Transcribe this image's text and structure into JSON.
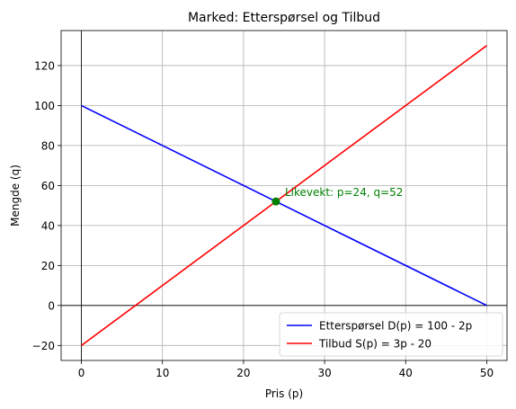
{
  "chart_data": {
    "type": "line",
    "title": "Marked: Etterspørsel og Tilbud",
    "xlabel": "Pris (p)",
    "ylabel": "Mengde (q)",
    "xlim": [
      -2.5,
      52.5
    ],
    "ylim": [
      -27.5,
      137.5
    ],
    "xticks": [
      0,
      10,
      20,
      30,
      40,
      50
    ],
    "yticks": [
      -20,
      0,
      20,
      40,
      60,
      80,
      100,
      120
    ],
    "xtick_labels": [
      "0",
      "10",
      "20",
      "30",
      "40",
      "50"
    ],
    "ytick_labels": [
      "−20",
      "0",
      "20",
      "40",
      "60",
      "80",
      "100",
      "120"
    ],
    "grid": true,
    "legend_position": "bottom-right",
    "series": [
      {
        "name": "Etterspørsel D(p) = 100 - 2p",
        "color": "#0000ff",
        "x": [
          0,
          50
        ],
        "y": [
          100,
          0
        ]
      },
      {
        "name": "Tilbud S(p) = 3p - 20",
        "color": "#ff0000",
        "x": [
          0,
          50
        ],
        "y": [
          -20,
          130
        ]
      }
    ],
    "equilibrium": {
      "x": 24,
      "y": 52,
      "color": "#008000",
      "label": "Likevekt: p=24, q=52"
    },
    "reference_lines": {
      "x": 0,
      "y": 0,
      "color": "#000000"
    }
  }
}
